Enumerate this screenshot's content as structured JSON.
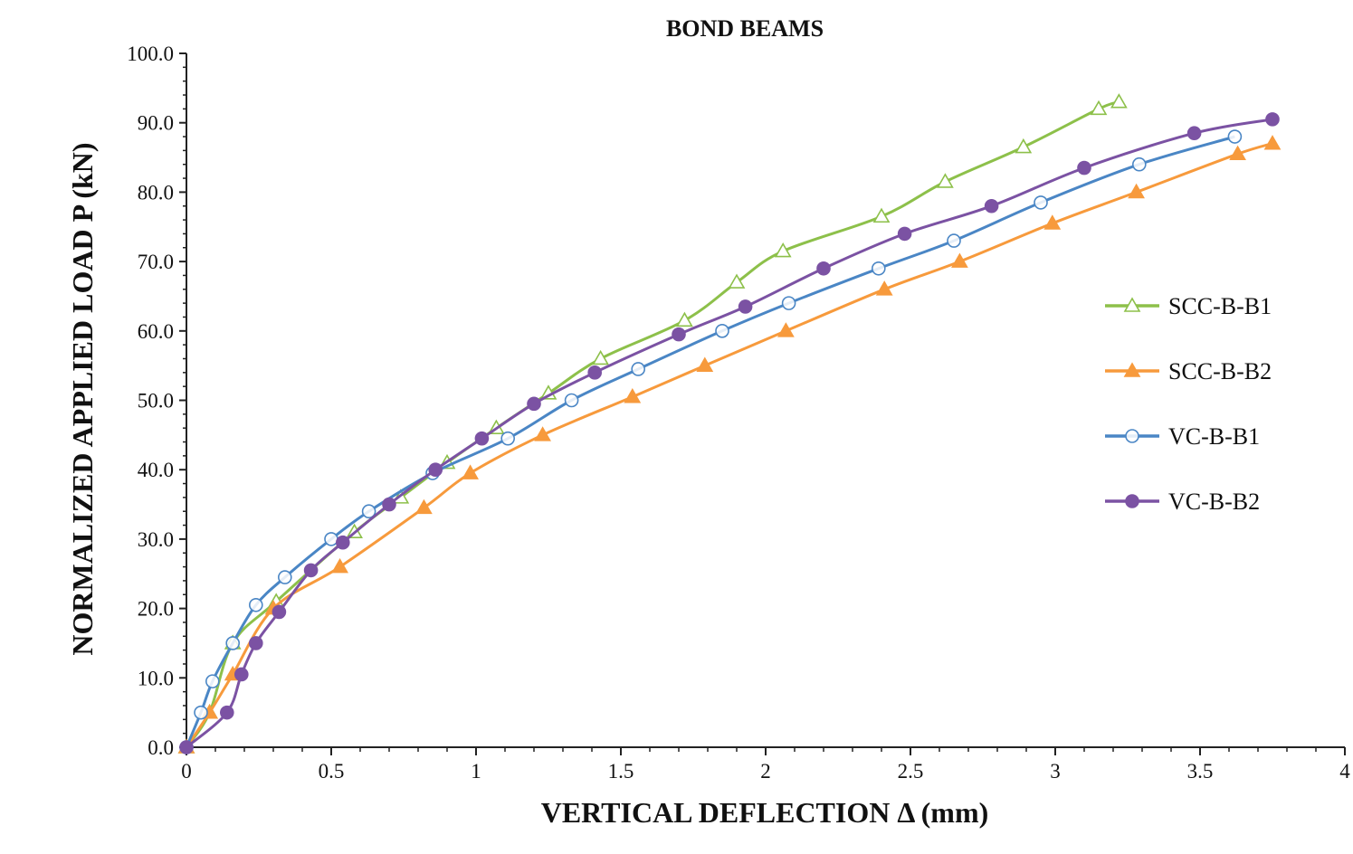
{
  "chart_data": {
    "type": "line",
    "title": "BOND BEAMS",
    "xlabel": "VERTICAL DEFLECTION Δ (mm)",
    "ylabel": "NORMALIZED APPLIED LOAD P (kN)",
    "xlim": [
      0,
      4
    ],
    "ylim": [
      0,
      100
    ],
    "xticks": [
      0,
      0.5,
      1,
      1.5,
      2,
      2.5,
      3,
      3.5,
      4
    ],
    "xtick_labels": [
      "0",
      "0.5",
      "1",
      "1.5",
      "2",
      "2.5",
      "3",
      "3.5",
      "4"
    ],
    "yticks": [
      0,
      10,
      20,
      30,
      40,
      50,
      60,
      70,
      80,
      90,
      100
    ],
    "ytick_labels": [
      "0.0",
      "10.0",
      "20.0",
      "30.0",
      "40.0",
      "50.0",
      "60.0",
      "70.0",
      "80.0",
      "90.0",
      "100.0"
    ],
    "grid": false,
    "legend_position": "right",
    "series": [
      {
        "name": "SCC-B-B1",
        "color": "#8dc04a",
        "marker": "triangle-open",
        "x": [
          0,
          0.08,
          0.16,
          0.31,
          0.58,
          0.74,
          0.9,
          1.07,
          1.25,
          1.43,
          1.72,
          1.9,
          2.06,
          2.4,
          2.62,
          2.89,
          3.15,
          3.22
        ],
        "y": [
          0,
          5,
          15,
          21,
          31,
          36,
          41,
          46,
          51,
          56,
          61.5,
          67,
          71.5,
          76.5,
          81.5,
          86.5,
          92,
          93
        ]
      },
      {
        "name": "SCC-B-B2",
        "color": "#f79a3c",
        "marker": "triangle-filled",
        "x": [
          0,
          0.08,
          0.16,
          0.3,
          0.53,
          0.82,
          0.98,
          1.23,
          1.54,
          1.79,
          2.07,
          2.41,
          2.67,
          2.99,
          3.28,
          3.63,
          3.75
        ],
        "y": [
          0,
          5,
          10.5,
          20,
          26,
          34.5,
          39.5,
          45,
          50.5,
          55,
          60,
          66,
          70,
          75.5,
          80,
          85.5,
          87
        ]
      },
      {
        "name": "VC-B-B1",
        "color": "#4a86c5",
        "marker": "circle-open",
        "x": [
          0,
          0.05,
          0.09,
          0.16,
          0.24,
          0.34,
          0.5,
          0.63,
          0.85,
          1.11,
          1.33,
          1.56,
          1.85,
          2.08,
          2.39,
          2.65,
          2.95,
          3.29,
          3.62
        ],
        "y": [
          0,
          5,
          9.5,
          15,
          20.5,
          24.5,
          30,
          34,
          39.5,
          44.5,
          50,
          54.5,
          60,
          64,
          69,
          73,
          78.5,
          84,
          88
        ]
      },
      {
        "name": "VC-B-B2",
        "color": "#7b52a3",
        "marker": "circle-filled",
        "x": [
          0,
          0.14,
          0.19,
          0.24,
          0.32,
          0.43,
          0.54,
          0.7,
          0.86,
          1.02,
          1.2,
          1.41,
          1.7,
          1.93,
          2.2,
          2.48,
          2.78,
          3.1,
          3.48,
          3.75
        ],
        "y": [
          0,
          5,
          10.5,
          15,
          19.5,
          25.5,
          29.5,
          35,
          40,
          44.5,
          49.5,
          54,
          59.5,
          63.5,
          69,
          74,
          78,
          83.5,
          88.5,
          90.5
        ]
      }
    ]
  }
}
